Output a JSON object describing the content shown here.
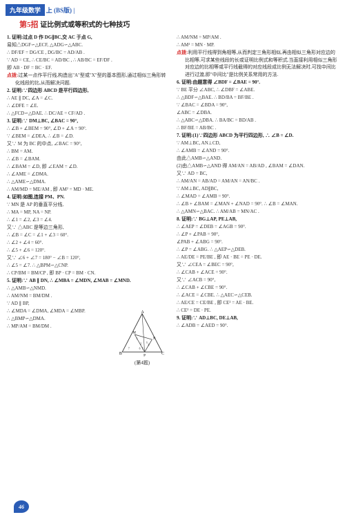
{
  "header": {
    "bar": "九年级数学",
    "suffix": "上 (BS版) |"
  },
  "title": {
    "red": "第5招",
    "black": "证比例式或等积式的七种技巧"
  },
  "page": "46",
  "diagram_caption": "(第4题)",
  "left": [
    "1. 证明:过点 D 作 DG∥BC,交 AC 于点 G,",
    "易知△DGF∽△ECF, △ADG∽△ABC.",
    "∴ DF/EF = DG/CE , DG/BC = AD/AB .",
    "∵ AD = CE, ∴ CE/BC = AD/BC , ∴ AB/BC = EF/DF .",
    "即 AB · DF = BC · EF.",
    "点拨:过某一点作平行线,构造出\"A\"型或\"X\"型的基本图形,通过相似三角形转化线段的比,从而解决问题.",
    "2. 证明:∵四边形 ABCD 是平行四边形,",
    "∴ AE ∥ DC, ∠A = ∠C.",
    "∴ ∠DFE = ∠E.",
    "∴ △FCD∽△DAE. ∴ DC/AE = CF/AD .",
    "3. 证明:∵ DM⊥BC, ∠BAC = 90°,",
    "∴ ∠B + ∠BEM = 90°, ∠D + ∠A = 90°.",
    "∵ ∠BEM = ∠DEA, ∴ ∠B = ∠D.",
    "又∵ M 为 BC 的中点, ∠BAC = 90°,",
    "∴ BM = AM.",
    "∴ ∠B = ∠BAM.",
    "∴ ∠BAM = ∠D, 即 ∠EAM = ∠D.",
    "∴ ∠AME = ∠DMA.",
    "∴ △AME∽△DMA.",
    "∴ AM/MD = ME/AM , 即 AM² = MD · ME.",
    "4. 证明:如图,连接 PM、PN.",
    "∵ MN 是 AP 的垂直平分线,",
    "∴ MA = MP, NA = NP.",
    "∴ ∠1 = ∠2, ∠3 = ∠4.",
    "又∵ △ABC 是等边三角形,",
    "∴ ∠B = ∠C = ∠1 + ∠3 = 60°.",
    "∴ ∠2 + ∠4 = 60°.",
    "∴ ∠5 + ∠6 = 120°.",
    "又∵ ∠6 + ∠7 = 180° − ∠B = 120°,",
    "∴ ∠5 = ∠7. ∴ △BPM∽△CNP.",
    "∴ CP/BM = BM/CP , 即 BP · CP = BM · CN.",
    "5. 证明:∵ AB ∥ DN, ∴ ∠MBA = ∠MDN, ∠MAB = ∠MND.",
    "∴ △AMB∽△NMD.",
    "∴ AM/NM = BM/DM .",
    "∵ AD ∥ BP,",
    "∴ ∠MDA = ∠DMA, ∠MDA = ∠MBP.",
    "∴ △BMP∽△DMA.",
    "∴ MP/AM = BM/DM ."
  ],
  "right": [
    "∴ AM/NM = MP/AM .",
    "∴ AM² = MN · MP.",
    "点拨:利用平行线得到角相等,从而判定三角形相似,再由相似三角形对应边的比相等,可求某些线段的长或证明比例式和等积式.当直接利用相似三角形对应边的比相等或平行线截得的对应线段成比例无法解决时,可找中间比进行过渡,即\"中间比\"是比例关系常用的方法.",
    "6. 证明:由题意得 ∠BDF = ∠BAE = 90°.",
    "∵ BE 平分 ∠ABC, ∴ ∠DBF = ∠ABE.",
    "∴ △BDF∽△BAE. ∴ BD/BA = BF/BE .",
    "∵ ∠BAC = ∠BDA = 90°,",
    "∠ABC = ∠DBA.",
    "∴ △ABC∽△DBA. ∴ BA/BC = BD/AB .",
    "∴ BF/BE = AB/BC .",
    "7. 证明:(1)∵四边形 ABCD 为平行四边形, ∴ ∠B = ∠D.",
    "∵ AM⊥BC, AN⊥CD,",
    "∴ ∠AMB = ∠AND = 90°.",
    "由此△AMB∽△AND.",
    "(2)由△AMB∽△AND 得 AM/AN = AB/AD , ∠BAM = ∠DAN.",
    "又∵ AD = BC,",
    "∴ AM/AN = AB/AD = AM/AN = AN/BC .",
    "∵ AM⊥BC, AD∥BC,",
    "∴ ∠MAD = ∠AMB = 90°.",
    "∴ ∠B + ∠BAM = ∠MAN + ∠NAD = 90°. ∴ ∠B = ∠MAN.",
    "∴ △AMN∽△BAC. ∴ AM/AB = MN/AC .",
    "8. 证明:∵ BG⊥AP, PE⊥AB,",
    "∴ ∠AEP = ∠DEB = ∠AGB = 90°.",
    "∴ ∠P + ∠PAB = 90°,",
    "∠PAB + ∠ABG = 90°.",
    "∴ ∠P = ∠ABG. ∴ △AEP∽△DEB.",
    "∴ AE/DE = PE/BE , 即 AE · BE = PE · DE.",
    "又∵ ∠CEA = ∠BEC = 90°,",
    "∴ ∠CAB + ∠ACE = 90°.",
    "又∵ ∠ACB = 90°,",
    "∴ ∠CAB + ∠CBE = 90°.",
    "∴ ∠ACE = ∠CBE. ∴ △AEC∽△CEB.",
    "∴ AE/CE = CE/BE , 即 CE² = AE · BE.",
    "∴ CE² = DE · PE.",
    "9. 证明:∵ AD⊥BC, DE⊥AB,",
    "∴ ∠ADB = ∠AED = 90°."
  ]
}
